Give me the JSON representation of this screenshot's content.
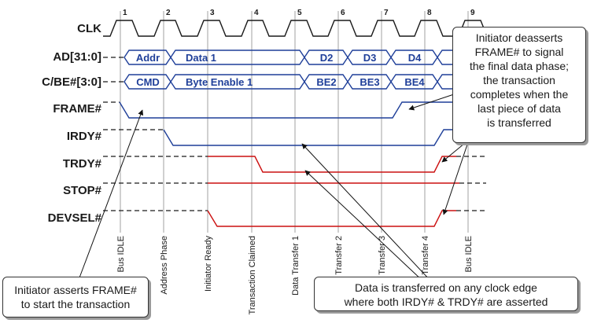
{
  "clock": {
    "label": "CLK",
    "numbers": [
      "1",
      "2",
      "3",
      "4",
      "5",
      "6",
      "7",
      "8",
      "9"
    ]
  },
  "signals": {
    "ad": {
      "label": "AD[31:0]",
      "cells": [
        "Addr",
        "Data 1",
        "D2",
        "D3",
        "D4"
      ]
    },
    "cbe": {
      "label": "C/BE#[3:0]",
      "cells": [
        "CMD",
        "Byte Enable 1",
        "BE2",
        "BE3",
        "BE4"
      ]
    },
    "frame": {
      "label": "FRAME#"
    },
    "irdy": {
      "label": "IRDY#"
    },
    "trdy": {
      "label": "TRDY#"
    },
    "stop": {
      "label": "STOP#"
    },
    "devsel": {
      "label": "DEVSEL#"
    }
  },
  "phases": [
    "Bus IDLE",
    "Address Phase",
    "Initiator Ready",
    "Transaction Claimed",
    "Data Transfer 1",
    "Transfer 2",
    "Transfer 3",
    "Transfer 4",
    "Bus IDLE"
  ],
  "callouts": {
    "frame_deassert": "Initiator deasserts\nFRAME# to signal\nthe final data phase;\nthe transaction\ncompletes when the\nlast piece of data\nis transferred",
    "frame_assert": "Initiator asserts FRAME#\nto start the transaction",
    "data_transfer": "Data is transferred on any clock edge\nwhere both IRDY# & TRDY# are asserted"
  },
  "colors": {
    "initiator_signal": "#1f3f99",
    "target_signal": "#cc1111",
    "text": "#1a1a1a"
  }
}
